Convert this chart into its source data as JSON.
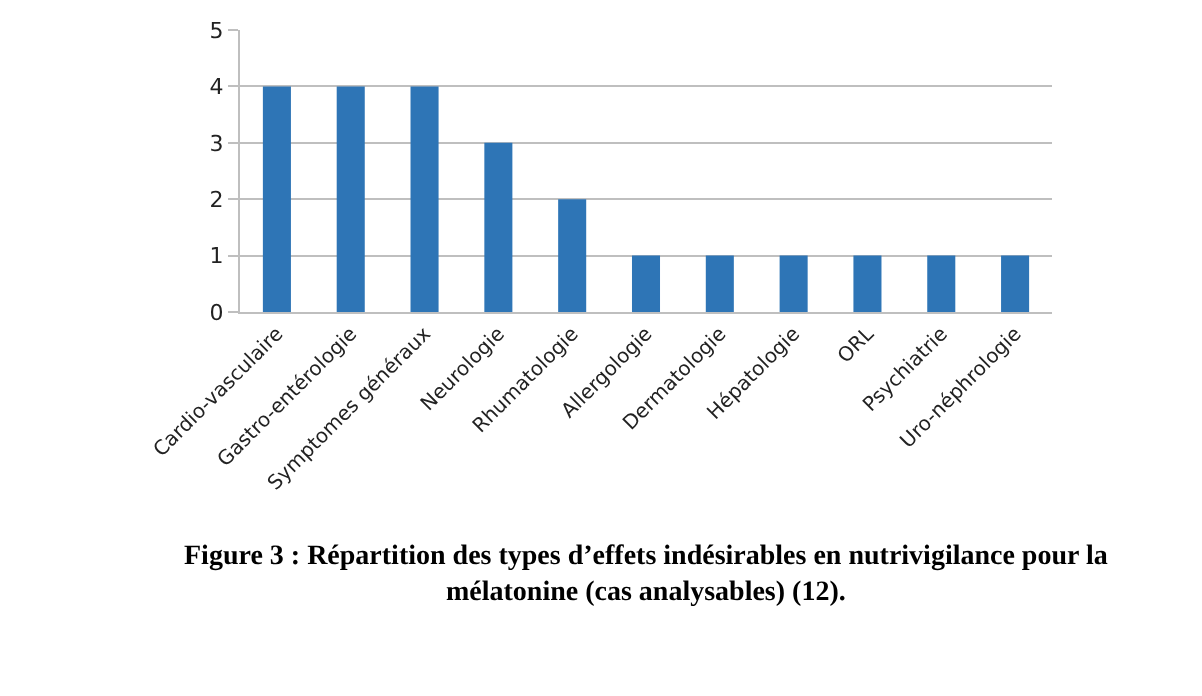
{
  "chart_data": {
    "type": "bar",
    "categories": [
      "Cardio-vasculaire",
      "Gastro-entérologie",
      "Symptomes généraux",
      "Neurologie",
      "Rhumatologie",
      "Allergologie",
      "Dermatologie",
      "Hépatologie",
      "ORL",
      "Psychiatrie",
      "Uro-néphrologie"
    ],
    "values": [
      4,
      4,
      4,
      3,
      2,
      1,
      1,
      1,
      1,
      1,
      1
    ],
    "color": "#2e75b6",
    "ylim": [
      0,
      5
    ],
    "yticks": [
      0,
      1,
      2,
      3,
      4,
      5
    ],
    "grid": "y",
    "annotations": [
      "Figure 3 : Répartition des types d’effets indésirables en nutrivigilance pour la mélatonine (cas analysables) (12)."
    ]
  }
}
